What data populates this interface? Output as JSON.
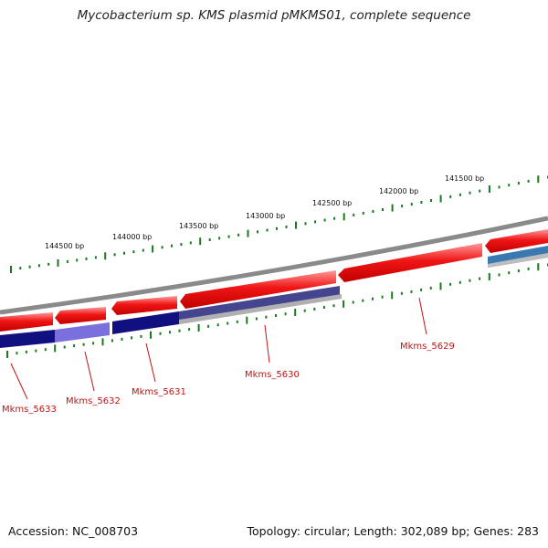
{
  "title": "Mycobacterium sp. KMS plasmid pMKMS01, complete sequence",
  "footer": {
    "accession": "Accession: NC_008703",
    "summary": "Topology: circular; Length: 302,089 bp; Genes: 283"
  },
  "scale_labels": [
    "144500 bp",
    "144000 bp",
    "143500 bp",
    "143000 bp",
    "142500 bp",
    "142000 bp",
    "141500 bp"
  ],
  "gene_labels": [
    "Mkms_5633",
    "Mkms_5632",
    "Mkms_5631",
    "Mkms_5630",
    "Mkms_5629"
  ],
  "colors": {
    "backbone": "#8a8a8a",
    "forward_gene": "#ee1111",
    "reverse_gene_dark": "#101080",
    "reverse_gene_light": "#7a70dd",
    "reverse_gene_slate": "#44448f",
    "reverse_gene_blue": "#3a78b0",
    "tick": "#1a7a1a",
    "label": "#c41212"
  }
}
